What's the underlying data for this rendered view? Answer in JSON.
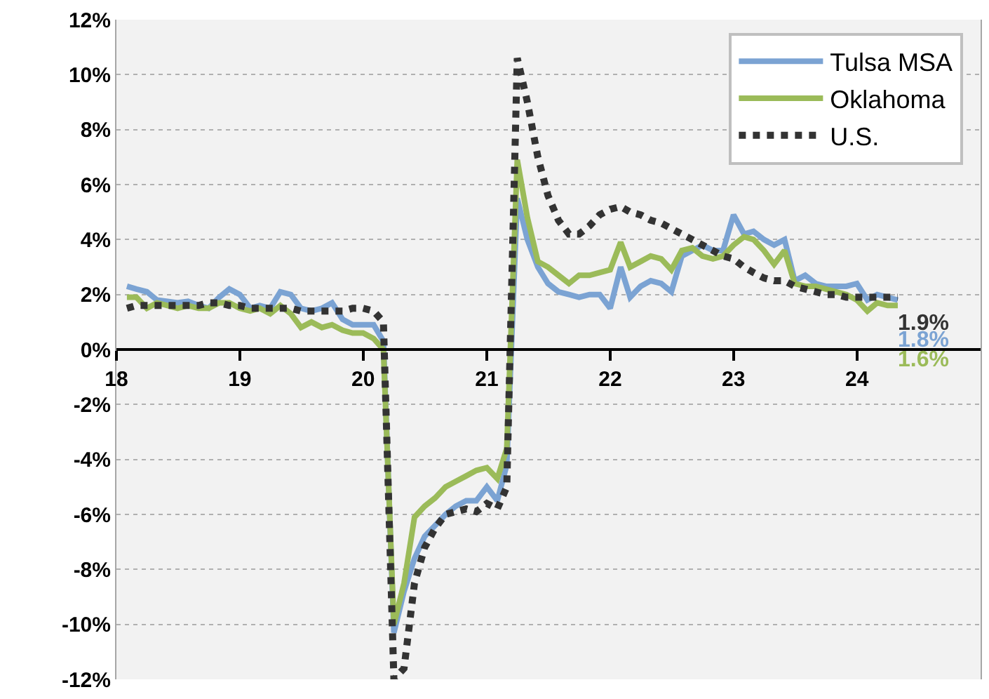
{
  "chart_data": {
    "type": "line",
    "x": [
      "2018-02",
      "2018-03",
      "2018-04",
      "2018-05",
      "2018-06",
      "2018-07",
      "2018-08",
      "2018-09",
      "2018-10",
      "2018-11",
      "2018-12",
      "2019-01",
      "2019-02",
      "2019-03",
      "2019-04",
      "2019-05",
      "2019-06",
      "2019-07",
      "2019-08",
      "2019-09",
      "2019-10",
      "2019-11",
      "2019-12",
      "2020-01",
      "2020-02",
      "2020-03",
      "2020-04",
      "2020-05",
      "2020-06",
      "2020-07",
      "2020-08",
      "2020-09",
      "2020-10",
      "2020-11",
      "2020-12",
      "2021-01",
      "2021-02",
      "2021-03",
      "2021-04",
      "2021-05",
      "2021-06",
      "2021-07",
      "2021-08",
      "2021-09",
      "2021-10",
      "2021-11",
      "2021-12",
      "2022-01",
      "2022-02",
      "2022-03",
      "2022-04",
      "2022-05",
      "2022-06",
      "2022-07",
      "2022-08",
      "2022-09",
      "2022-10",
      "2022-11",
      "2022-12",
      "2023-01",
      "2023-02",
      "2023-03",
      "2023-04",
      "2023-05",
      "2023-06",
      "2023-07",
      "2023-08",
      "2023-09",
      "2023-10",
      "2023-11",
      "2023-12",
      "2024-01",
      "2024-02",
      "2024-03",
      "2024-04",
      "2024-05"
    ],
    "series": [
      {
        "name": "Tulsa MSA",
        "color": "#7ba3d3",
        "values": [
          2.3,
          2.2,
          2.1,
          1.8,
          1.75,
          1.7,
          1.75,
          1.6,
          1.5,
          1.9,
          2.2,
          2.0,
          1.5,
          1.6,
          1.5,
          2.1,
          2.0,
          1.5,
          1.4,
          1.5,
          1.7,
          1.1,
          0.9,
          0.9,
          0.9,
          0.3,
          -10.3,
          -8.8,
          -7.6,
          -6.8,
          -6.4,
          -6.0,
          -5.7,
          -5.5,
          -5.5,
          -5.0,
          -5.5,
          -4.2,
          5.5,
          4.0,
          3.0,
          2.4,
          2.1,
          2.0,
          1.9,
          2.0,
          2.0,
          1.5,
          3.0,
          1.9,
          2.3,
          2.5,
          2.4,
          2.1,
          3.4,
          3.6,
          3.8,
          3.6,
          3.6,
          4.9,
          4.2,
          4.3,
          4.0,
          3.8,
          4.0,
          2.5,
          2.7,
          2.4,
          2.3,
          2.3,
          2.3,
          2.4,
          1.8,
          2.0,
          1.9,
          1.8
        ]
      },
      {
        "name": "Oklahoma",
        "color": "#9bbb59",
        "values": [
          1.9,
          1.9,
          1.5,
          1.7,
          1.6,
          1.5,
          1.6,
          1.5,
          1.5,
          1.7,
          1.7,
          1.5,
          1.4,
          1.5,
          1.3,
          1.6,
          1.3,
          0.8,
          1.0,
          0.8,
          0.9,
          0.7,
          0.6,
          0.6,
          0.4,
          0.0,
          -10.0,
          -8.5,
          -6.1,
          -5.7,
          -5.4,
          -5.0,
          -4.8,
          -4.6,
          -4.4,
          -4.3,
          -4.7,
          -3.6,
          6.9,
          4.8,
          3.2,
          3.0,
          2.7,
          2.4,
          2.7,
          2.7,
          2.8,
          2.9,
          3.9,
          3.0,
          3.2,
          3.4,
          3.3,
          2.9,
          3.6,
          3.7,
          3.4,
          3.3,
          3.4,
          3.8,
          4.1,
          4.0,
          3.6,
          3.1,
          3.6,
          2.4,
          2.3,
          2.3,
          2.2,
          2.1,
          2.0,
          1.8,
          1.4,
          1.7,
          1.6,
          1.6
        ]
      },
      {
        "name": "U.S.",
        "color": "#333333",
        "line_style": "dotted",
        "values": [
          1.5,
          1.6,
          1.6,
          1.6,
          1.6,
          1.6,
          1.6,
          1.6,
          1.7,
          1.7,
          1.6,
          1.6,
          1.5,
          1.5,
          1.5,
          1.5,
          1.5,
          1.4,
          1.4,
          1.4,
          1.4,
          1.4,
          1.5,
          1.5,
          1.4,
          1.0,
          -12.0,
          -11.6,
          -8.5,
          -7.2,
          -6.5,
          -6.0,
          -5.9,
          -5.8,
          -5.9,
          -5.6,
          -5.8,
          -5.0,
          10.6,
          9.0,
          7.0,
          5.6,
          4.7,
          4.2,
          4.2,
          4.5,
          4.9,
          5.1,
          5.2,
          5.0,
          4.9,
          4.7,
          4.6,
          4.4,
          4.2,
          4.0,
          3.8,
          3.6,
          3.4,
          3.3,
          3.0,
          2.8,
          2.6,
          2.5,
          2.5,
          2.3,
          2.2,
          2.1,
          2.0,
          2.0,
          1.9,
          1.9,
          1.9,
          1.9,
          1.9,
          1.9
        ]
      }
    ],
    "xlim": [
      "2018-01",
      "2025-01"
    ],
    "xticks": [
      {
        "value": "2018",
        "label": "18"
      },
      {
        "value": "2019",
        "label": "19"
      },
      {
        "value": "2020",
        "label": "20"
      },
      {
        "value": "2021",
        "label": "21"
      },
      {
        "value": "2022",
        "label": "22"
      },
      {
        "value": "2023",
        "label": "23"
      },
      {
        "value": "2024",
        "label": "24"
      }
    ],
    "ylim": [
      -12,
      12
    ],
    "yticks": [
      {
        "value": -12,
        "label": "-12%"
      },
      {
        "value": -10,
        "label": "-10%"
      },
      {
        "value": -8,
        "label": "-8%"
      },
      {
        "value": -6,
        "label": "-6%"
      },
      {
        "value": -4,
        "label": "-4%"
      },
      {
        "value": -2,
        "label": "-2%"
      },
      {
        "value": 0,
        "label": "0%"
      },
      {
        "value": 2,
        "label": "2%"
      },
      {
        "value": 4,
        "label": "4%"
      },
      {
        "value": 6,
        "label": "6%"
      },
      {
        "value": 8,
        "label": "8%"
      },
      {
        "value": 10,
        "label": "10%"
      },
      {
        "value": 12,
        "label": "12%"
      }
    ],
    "grid": "y",
    "legend": "top right",
    "marker": "none",
    "annotations": [
      {
        "text": "1.9%",
        "x": "2024-05",
        "y": 1.9
      },
      {
        "text": "1.8%",
        "x": "2024-05",
        "y": 1.8
      },
      {
        "text": "1.6%",
        "x": "2024-05",
        "y": 1.6
      }
    ]
  }
}
